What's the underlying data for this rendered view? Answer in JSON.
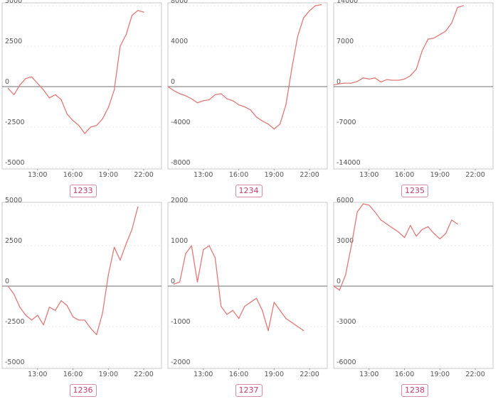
{
  "colors": {
    "series": "#e07a78",
    "badge": "#c43d6b",
    "frame": "#c9c9c9"
  },
  "chart_data": [
    {
      "type": "line",
      "badge": "1233",
      "yticks": [
        5000,
        2500,
        0,
        -2500,
        -5000
      ],
      "ylim": [
        -5000,
        5000
      ],
      "xticks": [
        "13:00",
        "16:00",
        "19:00",
        "22:00"
      ],
      "x": [
        10.5,
        11,
        11.5,
        12,
        12.5,
        13,
        13.5,
        14,
        14.5,
        15,
        15.5,
        16,
        16.5,
        17,
        17.5,
        18,
        18.5,
        19,
        19.5,
        20,
        20.5,
        21,
        21.5,
        22,
        22.5
      ],
      "values": [
        -100,
        -500,
        100,
        500,
        600,
        200,
        -200,
        -700,
        -500,
        -800,
        -1700,
        -2100,
        -2400,
        -2900,
        -2500,
        -2400,
        -2000,
        -1300,
        -200,
        2500,
        3200,
        4400,
        4700,
        4600,
        null
      ]
    },
    {
      "type": "line",
      "badge": "1234",
      "yticks": [
        8000,
        4000,
        0,
        -4000,
        -8000
      ],
      "ylim": [
        -8000,
        8000
      ],
      "xticks": [
        "13:00",
        "16:00",
        "19:00",
        "22:00"
      ],
      "x": [
        10,
        10.5,
        11,
        11.5,
        12,
        12.5,
        13,
        13.5,
        14,
        14.5,
        15,
        15.5,
        16,
        16.5,
        17,
        17.5,
        18,
        18.5,
        19,
        19.5,
        20,
        20.5,
        21,
        21.5,
        22,
        22.5,
        23
      ],
      "values": [
        0,
        -400,
        -700,
        -900,
        -1200,
        -1600,
        -1400,
        -1300,
        -800,
        -700,
        -1200,
        -1400,
        -1800,
        -2000,
        -2300,
        -3000,
        -3400,
        -3700,
        -4200,
        -3700,
        -1800,
        1800,
        5000,
        6800,
        7500,
        8000,
        8100
      ]
    },
    {
      "type": "line",
      "badge": "1235",
      "yticks": [
        14000,
        7000,
        0,
        -7000,
        -14000
      ],
      "ylim": [
        -14000,
        14000
      ],
      "xticks": [
        "13:00",
        "16:00",
        "19:00",
        "22:00"
      ],
      "x": [
        10,
        10.5,
        11,
        11.5,
        12,
        12.5,
        13,
        13.5,
        14,
        14.5,
        15,
        15.5,
        16,
        16.5,
        17,
        17.5,
        18,
        18.5,
        19,
        19.5,
        20,
        20.5,
        21,
        21.5,
        22
      ],
      "values": [
        300,
        500,
        600,
        600,
        900,
        1500,
        1300,
        1500,
        800,
        1200,
        1100,
        1100,
        1300,
        1900,
        3000,
        6200,
        8200,
        8400,
        9000,
        9600,
        11000,
        13700,
        14000,
        null,
        null
      ]
    },
    {
      "type": "line",
      "badge": "1236",
      "yticks": [
        5000,
        2500,
        0,
        -2500,
        -5000
      ],
      "ylim": [
        -5000,
        5000
      ],
      "xticks": [
        "13:00",
        "16:00",
        "19:00",
        "22:00"
      ],
      "x": [
        10.5,
        11,
        11.5,
        12,
        12.5,
        13,
        13.5,
        14,
        14.5,
        15,
        15.5,
        16,
        16.5,
        17,
        17.5,
        18,
        18.5,
        19,
        19.5,
        20,
        20.5,
        21,
        21.5
      ],
      "values": [
        0,
        -500,
        -1300,
        -1800,
        -2100,
        -1800,
        -2400,
        -1300,
        -1500,
        -900,
        -1200,
        -1900,
        -2100,
        -2100,
        -2600,
        -3000,
        -1700,
        700,
        2400,
        1600,
        2600,
        3500,
        4900
      ]
    },
    {
      "type": "line",
      "badge": "1237",
      "yticks": [
        2000,
        1000,
        0,
        -1000,
        -2000
      ],
      "ylim": [
        -2000,
        2000
      ],
      "xticks": [
        "13:00",
        "16:00",
        "19:00",
        "22:00"
      ],
      "x": [
        10.5,
        11,
        11.5,
        12,
        12.5,
        13,
        13.5,
        14,
        14.5,
        15,
        15.5,
        16,
        16.5,
        17,
        17.5,
        18,
        18.5,
        19,
        19.5,
        20,
        20.5,
        21,
        21.5
      ],
      "values": [
        50,
        100,
        800,
        1000,
        100,
        900,
        1000,
        700,
        -500,
        -700,
        -600,
        -800,
        -500,
        -400,
        -300,
        -600,
        -1100,
        -400,
        -600,
        -800,
        -900,
        -1000,
        -1100
      ]
    },
    {
      "type": "line",
      "badge": "1238",
      "yticks": [
        6000,
        3000,
        0,
        -3000,
        -6000
      ],
      "ylim": [
        -6000,
        6000
      ],
      "xticks": [
        "13:00",
        "16:00",
        "19:00",
        "22:00"
      ],
      "x": [
        10,
        10.5,
        11,
        11.5,
        12,
        12.5,
        13,
        13.5,
        14,
        14.5,
        15,
        15.5,
        16,
        16.5,
        17,
        17.5,
        18,
        18.5,
        19,
        19.5,
        20,
        20.5,
        21,
        21.5
      ],
      "values": [
        0,
        -300,
        800,
        3000,
        5500,
        6100,
        6000,
        5500,
        4900,
        4600,
        4300,
        4000,
        3600,
        4500,
        3700,
        4200,
        4400,
        3900,
        3500,
        3900,
        4900,
        4600,
        null,
        null
      ]
    }
  ]
}
